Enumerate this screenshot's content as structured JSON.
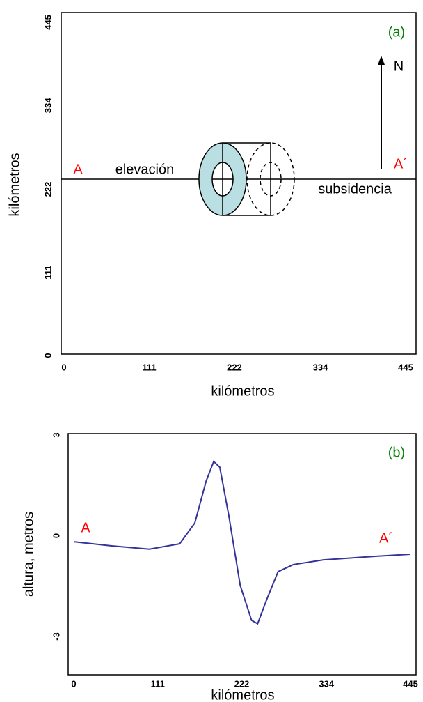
{
  "chart_data": [
    {
      "type": "diagram",
      "xlabel": "kilómetros",
      "ylabel": "kilómetros",
      "xlim": [
        0,
        445
      ],
      "ylim": [
        0,
        445
      ],
      "xticks": [
        0,
        111,
        222,
        334,
        445
      ],
      "yticks": [
        0,
        111,
        222,
        334,
        445
      ],
      "annotations": [
        "A",
        "elevación",
        "subsidencia",
        "A´",
        "N",
        "(a)"
      ]
    },
    {
      "type": "line",
      "xlabel": "kilómetros",
      "ylabel": "altura, metros",
      "xlim": [
        0,
        445
      ],
      "ylim": [
        -3,
        3
      ],
      "xticks": [
        0,
        111,
        222,
        334,
        445
      ],
      "yticks": [
        -3,
        0,
        3
      ],
      "x": [
        0,
        50,
        100,
        140,
        160,
        175,
        185,
        193,
        205,
        220,
        235,
        243,
        255,
        270,
        290,
        330,
        400,
        445
      ],
      "series": [
        {
          "color": "#333399",
          "values": [
            -0.18,
            -0.3,
            -0.4,
            -0.24,
            0.38,
            1.63,
            2.21,
            2.04,
            0.59,
            -1.48,
            -2.52,
            -2.62,
            -1.9,
            -1.07,
            -0.86,
            -0.72,
            -0.61,
            -0.55
          ]
        }
      ],
      "annotations": [
        "A",
        "A´",
        "(b)"
      ]
    }
  ]
}
